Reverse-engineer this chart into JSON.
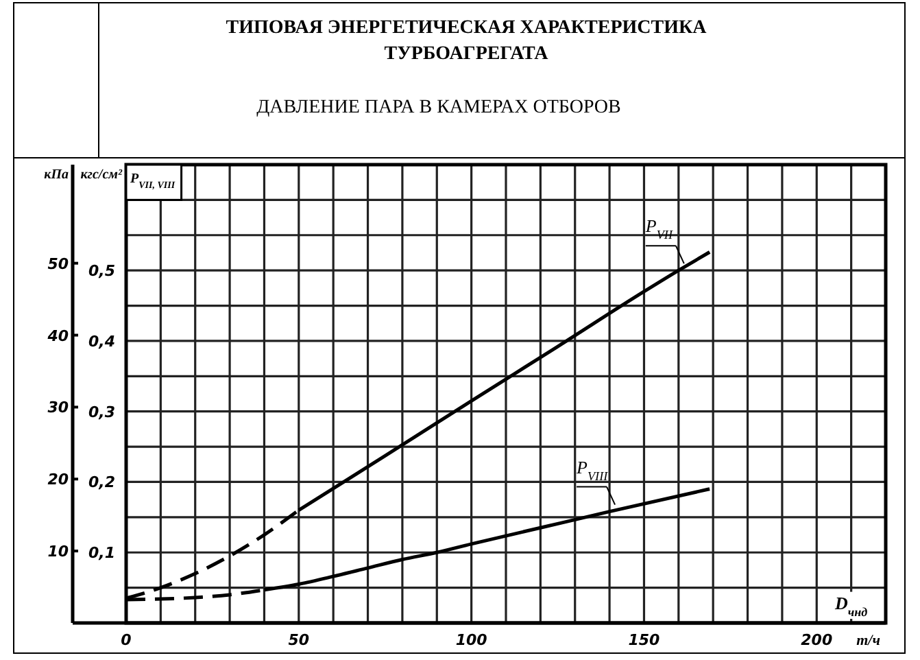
{
  "chart_data": {
    "type": "line",
    "title": "ТИПОВАЯ ЭНЕРГЕТИЧЕСКАЯ ХАРАКТЕРИСТИКА ТУРБОАГРЕГАТА",
    "subtitle": "ДАВЛЕНИЕ ПАРА В КАМЕРАХ ОТБОРОВ",
    "xlabel": "D$_{чнд}$",
    "ylabel": "кгс/см²",
    "y2label": "кПа",
    "annotations": [
      "P$_{VII, VIII}$",
      "т/ч"
    ],
    "xlim": [
      0,
      220
    ],
    "ylim": [
      0,
      0.65
    ],
    "y2lim": [
      0,
      63.7
    ],
    "xticks": [
      0,
      {
        "value": 10,
        "label": null
      },
      {
        "value": 20,
        "label": null
      },
      {
        "value": 30,
        "label": null
      },
      {
        "value": 40,
        "label": null
      },
      50,
      {
        "value": 60,
        "label": null
      },
      {
        "value": 70,
        "label": null
      },
      {
        "value": 80,
        "label": null
      },
      {
        "value": 90,
        "label": null
      },
      100,
      {
        "value": 110,
        "label": null
      },
      {
        "value": 120,
        "label": null
      },
      {
        "value": 130,
        "label": null
      },
      {
        "value": 140,
        "label": null
      },
      150,
      {
        "value": 160,
        "label": null
      },
      {
        "value": 170,
        "label": null
      },
      {
        "value": 180,
        "label": null
      },
      {
        "value": 190,
        "label": null
      },
      200,
      {
        "value": 210,
        "label": null
      }
    ],
    "yticks": [
      {
        "value": 0.05,
        "label": null
      },
      {
        "value": 0.1,
        "label": "0,1"
      },
      {
        "value": 0.15,
        "label": null
      },
      {
        "value": 0.2,
        "label": "0,2"
      },
      {
        "value": 0.25,
        "label": null
      },
      {
        "value": 0.3,
        "label": "0,3"
      },
      {
        "value": 0.35,
        "label": null
      },
      {
        "value": 0.4,
        "label": "0,4"
      },
      {
        "value": 0.45,
        "label": null
      },
      {
        "value": 0.5,
        "label": "0,5"
      },
      {
        "value": 0.55,
        "label": null
      },
      {
        "value": 0.6,
        "label": null
      }
    ],
    "y2ticks": [
      10,
      20,
      30,
      40,
      50
    ],
    "grid": true,
    "legend": false,
    "series": [
      {
        "color": "#000000",
        "line_style": "dashed",
        "x": [
          0,
          10,
          20,
          30,
          40,
          50
        ],
        "values": [
          0.035,
          0.05,
          0.07,
          0.095,
          0.125,
          0.16
        ]
      },
      {
        "name": "P$_{VII}$",
        "color": "#000000",
        "line_style": "solid",
        "x": [
          50,
          75,
          100,
          125,
          150,
          160,
          169
        ],
        "values": [
          0.16,
          0.237,
          0.315,
          0.392,
          0.47,
          0.5,
          0.526
        ]
      },
      {
        "color": "#000000",
        "line_style": "dashed",
        "x": [
          0,
          10,
          20,
          30,
          40
        ],
        "values": [
          0.033,
          0.034,
          0.036,
          0.04,
          0.047
        ]
      },
      {
        "name": "P$_{VIII}$",
        "color": "#000000",
        "line_style": "solid",
        "x": [
          40,
          50,
          60,
          70,
          80,
          90,
          100,
          120,
          140,
          169
        ],
        "values": [
          0.047,
          0.055,
          0.066,
          0.078,
          0.09,
          0.1,
          0.112,
          0.135,
          0.158,
          0.19
        ]
      }
    ]
  }
}
